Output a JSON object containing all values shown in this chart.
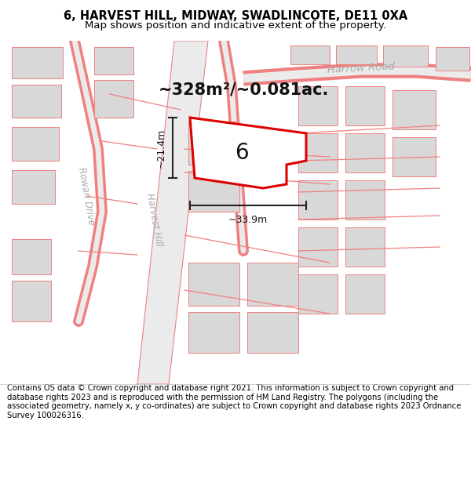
{
  "title": "6, HARVEST HILL, MIDWAY, SWADLINCOTE, DE11 0XA",
  "subtitle": "Map shows position and indicative extent of the property.",
  "footer": "Contains OS data © Crown copyright and database right 2021. This information is subject to Crown copyright and database rights 2023 and is reproduced with the permission of HM Land Registry. The polygons (including the associated geometry, namely x, y co-ordinates) are subject to Crown copyright and database rights 2023 Ordnance Survey 100026316.",
  "area_label": "~328m²/~0.081ac.",
  "width_label": "~33.9m",
  "height_label": "~21.4m",
  "plot_number": "6",
  "bg_color": "#ffffff",
  "map_bg": "#f0f0f0",
  "plot_outline_color": "#dd0000",
  "plot_fill": "#ffffff",
  "road_label_color": "#aaaaaa",
  "bld_fc": "#d8d8d8",
  "bld_ec": "#f08080",
  "road_lc": "#f08080",
  "road_fc": "#ebebeb",
  "dim_line_color": "#222222",
  "title_color": "#000000",
  "footer_color": "#000000",
  "title_fontsize": 10.5,
  "subtitle_fontsize": 9.5,
  "footer_fontsize": 7.2,
  "area_fontsize": 15,
  "plot_num_fontsize": 20,
  "dim_fontsize": 9,
  "road_label_fontsize": 8.5
}
